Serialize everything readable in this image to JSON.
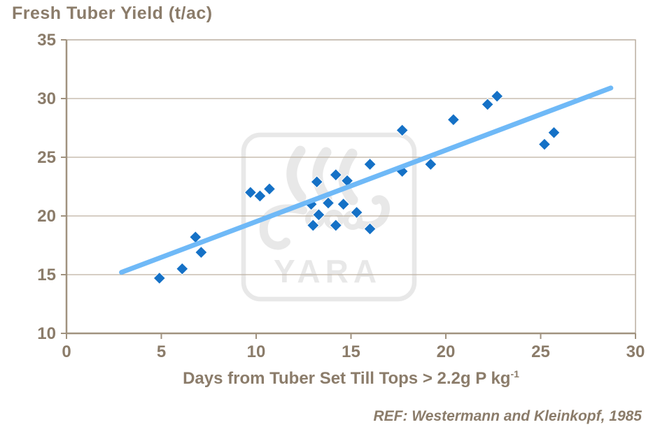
{
  "reference": "REF: Westermann and Kleinkopf, 1985",
  "watermark": {
    "brand": "YARA"
  },
  "colors": {
    "text": "#8b7c6a",
    "axis": "#a0927f",
    "grid": "#bdb1a1",
    "border": "#b5a999",
    "marker": "#1571c6",
    "marker_outline": "#ffffff",
    "trend": "#6fb9f7",
    "watermark": "#e8e8e8",
    "background": "#ffffff"
  },
  "chart_data": {
    "type": "scatter",
    "title": "Fresh Tuber Yield (t/ac)",
    "xlabel": "Days from Tuber Set Till Tops > 2.2g P kg⁻¹",
    "xlabel_base": "Days from Tuber Set Till Tops > 2.2g P kg",
    "xlabel_sup": "-1",
    "ylabel": "Fresh Tuber Yield (t/ac)",
    "xlim": [
      0,
      30
    ],
    "ylim": [
      10,
      35
    ],
    "xticks": [
      0,
      5,
      10,
      15,
      20,
      25,
      30
    ],
    "yticks": [
      10,
      15,
      20,
      25,
      30,
      35
    ],
    "grid": "horizontal",
    "legend": "none",
    "marker": "diamond",
    "points": [
      [
        4.9,
        14.7
      ],
      [
        6.1,
        15.5
      ],
      [
        6.8,
        18.2
      ],
      [
        7.1,
        16.9
      ],
      [
        9.7,
        22.0
      ],
      [
        10.2,
        21.7
      ],
      [
        10.7,
        22.3
      ],
      [
        13.2,
        22.9
      ],
      [
        14.2,
        23.5
      ],
      [
        14.8,
        23.0
      ],
      [
        16.0,
        24.4
      ],
      [
        12.9,
        21.0
      ],
      [
        13.8,
        21.1
      ],
      [
        14.6,
        21.0
      ],
      [
        13.3,
        20.1
      ],
      [
        15.3,
        20.3
      ],
      [
        13.0,
        19.2
      ],
      [
        14.2,
        19.2
      ],
      [
        16.0,
        18.9
      ],
      [
        17.7,
        27.3
      ],
      [
        17.7,
        23.8
      ],
      [
        19.2,
        24.4
      ],
      [
        20.4,
        28.2
      ],
      [
        22.2,
        29.5
      ],
      [
        22.7,
        30.2
      ],
      [
        25.2,
        26.1
      ],
      [
        25.7,
        27.1
      ]
    ],
    "trend_line": {
      "x_start": 2.9,
      "y_start": 15.2,
      "x_end": 28.7,
      "y_end": 30.9
    },
    "annotation": "REF: Westermann and Kleinkopf, 1985"
  }
}
